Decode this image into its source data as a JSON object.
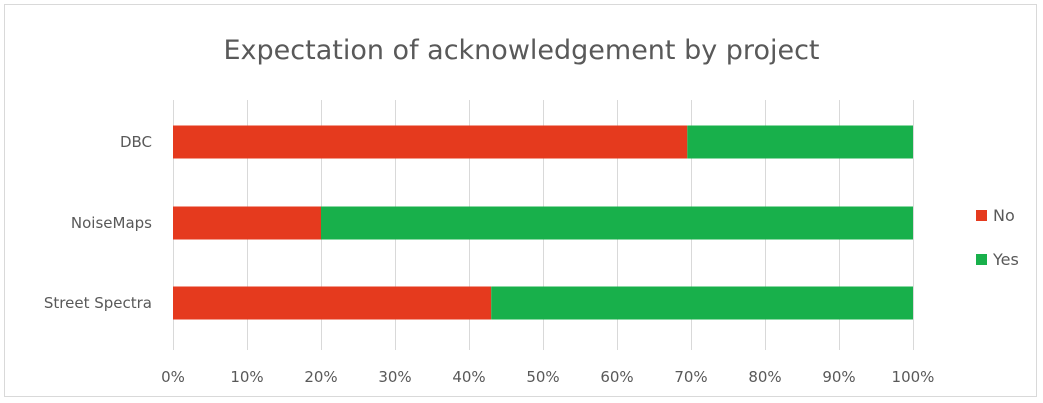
{
  "chart_data": {
    "type": "bar",
    "orientation": "horizontal",
    "stacking": "percent",
    "title": "Expectation of acknowledgement by project",
    "categories": [
      "DBC",
      "NoiseMaps",
      "Street Spectra"
    ],
    "series": [
      {
        "name": "No",
        "color": "#e53a1e",
        "values": [
          69.5,
          20,
          43
        ]
      },
      {
        "name": "Yes",
        "color": "#18b04b",
        "values": [
          30.5,
          80,
          57
        ]
      }
    ],
    "xlim": [
      0,
      100
    ],
    "xticks": [
      "0%",
      "10%",
      "20%",
      "30%",
      "40%",
      "50%",
      "60%",
      "70%",
      "80%",
      "90%",
      "100%"
    ],
    "grid": true,
    "legend_position": "right"
  }
}
